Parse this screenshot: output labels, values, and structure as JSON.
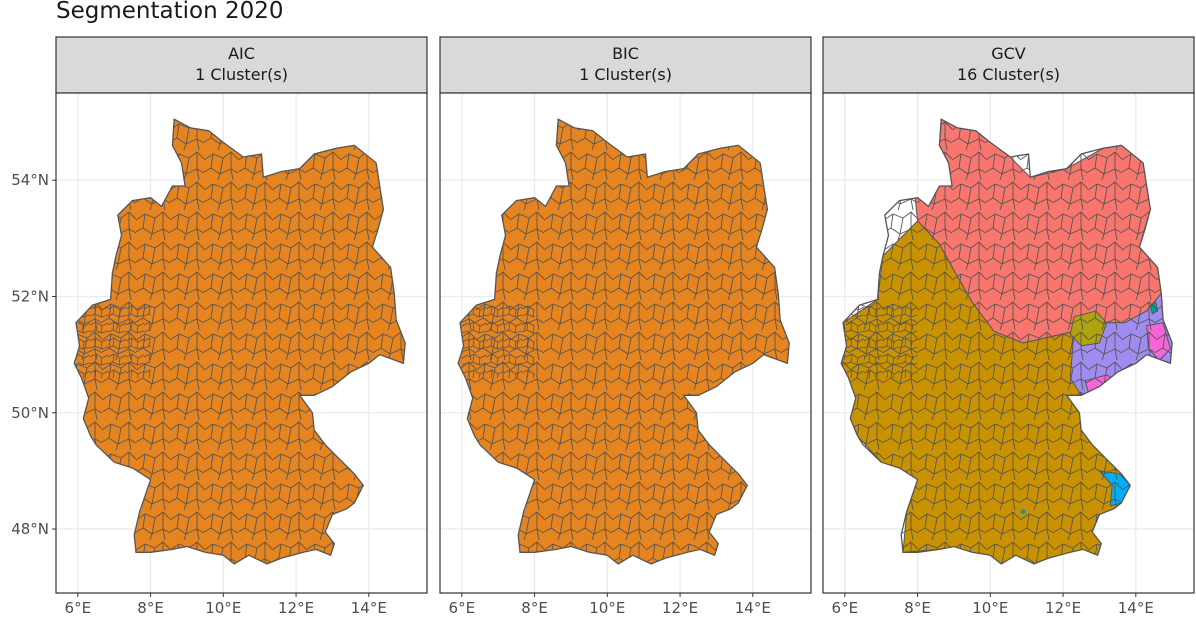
{
  "title": "Segmentation 2020",
  "colors": {
    "panel_border": "#333333",
    "strip_fill": "#d9d9d9",
    "grid": "#ebebeb",
    "region_border": "#555555",
    "cluster_orange": "#e6841f",
    "cluster_red": "#f8766d",
    "cluster_olive": "#c99200",
    "cluster_lavender": "#a08cf0",
    "cluster_pink": "#f564d8",
    "cluster_cyan": "#00b0f6",
    "cluster_khaki": "#b0a310",
    "cluster_teal": "#00a09a"
  },
  "axes": {
    "x_ticks": [
      "6°E",
      "8°E",
      "10°E",
      "12°E",
      "14°E"
    ],
    "y_ticks": [
      "54°N",
      "52°N",
      "50°N",
      "48°N"
    ],
    "lon_range": [
      5.4,
      15.6
    ],
    "lat_range": [
      46.9,
      55.5
    ]
  },
  "panels": [
    {
      "id": "aic",
      "method": "AIC",
      "clusters": "1 Cluster(s)"
    },
    {
      "id": "bic",
      "method": "BIC",
      "clusters": "1 Cluster(s)"
    },
    {
      "id": "gcv",
      "method": "GCV",
      "clusters": "16 Cluster(s)"
    }
  ]
}
